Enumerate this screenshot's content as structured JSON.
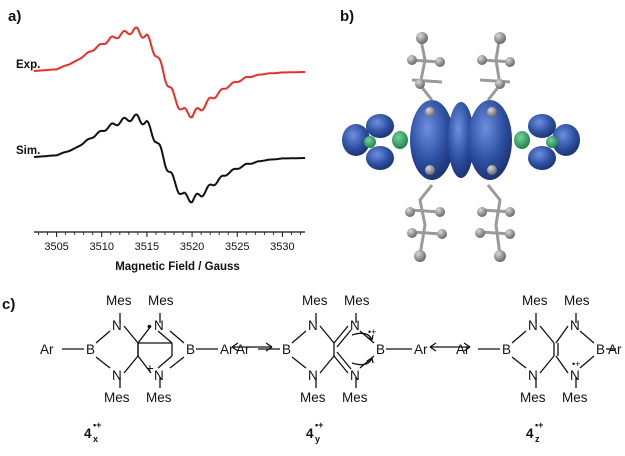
{
  "panels": {
    "a": "a)",
    "b": "b)",
    "c": "c)"
  },
  "chart_data": {
    "type": "line",
    "title": "",
    "xlabel": "Magnetic Field / Gauss",
    "ylabel": "",
    "xlim": [
      3502.5,
      3532.5
    ],
    "x_ticks": [
      3505,
      3510,
      3515,
      3520,
      3525,
      3530
    ],
    "grid": false,
    "series": [
      {
        "name": "Exp.",
        "color": "#e8302b",
        "offset": 1.0,
        "x": [
          3502.5,
          3505,
          3507,
          3509,
          3511,
          3513,
          3514,
          3515,
          3516,
          3517,
          3518,
          3519,
          3520,
          3521,
          3522,
          3524,
          3526,
          3528,
          3530,
          3532.5
        ],
        "y": [
          0.02,
          0.06,
          0.22,
          0.48,
          0.72,
          0.88,
          0.9,
          0.75,
          0.4,
          -0.1,
          -0.55,
          -0.85,
          -0.92,
          -0.8,
          -0.6,
          -0.3,
          -0.12,
          -0.04,
          -0.01,
          0.0
        ]
      },
      {
        "name": "Sim.",
        "color": "#111111",
        "offset": 0.0,
        "x": [
          3502.5,
          3505,
          3507,
          3509,
          3511,
          3513,
          3514,
          3515,
          3516,
          3517,
          3518,
          3519,
          3520,
          3521,
          3522,
          3524,
          3526,
          3528,
          3530,
          3532.5
        ],
        "y": [
          0.02,
          0.06,
          0.2,
          0.46,
          0.7,
          0.86,
          0.88,
          0.74,
          0.4,
          -0.08,
          -0.52,
          -0.82,
          -0.9,
          -0.8,
          -0.62,
          -0.32,
          -0.14,
          -0.05,
          -0.01,
          0.0
        ]
      }
    ]
  },
  "structures": {
    "mes": "Mes",
    "ar": "Ar",
    "b": "B",
    "n": "N",
    "dot": "•",
    "plus": "+",
    "radical_cation": "•+",
    "labels": [
      {
        "main": "4",
        "sub": "x",
        "sup": "•+"
      },
      {
        "main": "4",
        "sub": "y",
        "sup": "•+"
      },
      {
        "main": "4",
        "sub": "z",
        "sup": "•+"
      }
    ]
  },
  "colors": {
    "exp": "#e8302b",
    "sim": "#111111",
    "orbital": "#2c4fa0",
    "orbital_green": "#2c9a55",
    "atom": "#8a8a8a"
  }
}
